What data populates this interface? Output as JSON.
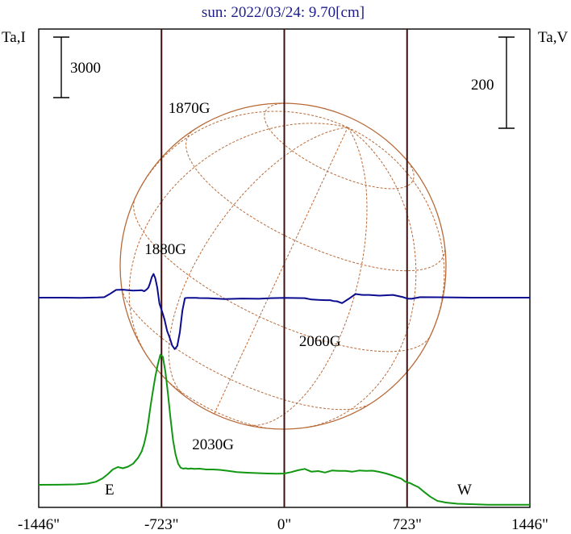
{
  "title": "sun: 2022/03/24: 9.70[cm]",
  "left_label": "Ta,I",
  "right_label": "Ta,V",
  "left_scale_label": "3000",
  "right_scale_label": "200",
  "east_label": "E",
  "west_label": "W",
  "colors": {
    "title": "#1c1c8c",
    "stokes_i": "#129712",
    "stokes_v": "#0c0c90",
    "grid_globe": "#b86a38",
    "frame": "#000000",
    "limb_lines": "#3a1010"
  },
  "chart_data": {
    "type": "line",
    "title": "sun: 2022/03/24: 9.70[cm]",
    "xlabel": "",
    "ylabel_left": "Ta,I",
    "ylabel_right": "Ta,V",
    "x_ticks": [
      -1446,
      -723,
      0,
      723,
      1446
    ],
    "x_tick_labels": [
      "-1446\"",
      "-723\"",
      "0\"",
      "723\"",
      "1446\""
    ],
    "xlim": [
      -1446,
      1446
    ],
    "limb_positions": [
      -723,
      0,
      723
    ],
    "scale_bars": [
      {
        "axis": "left",
        "value": 3000
      },
      {
        "axis": "right",
        "value": 200
      }
    ],
    "annotations": [
      {
        "text": "1870G",
        "x": -560,
        "series": "V"
      },
      {
        "text": "1880G",
        "x": -700,
        "series": "V"
      },
      {
        "text": "2030G",
        "x": -420,
        "series": "V"
      },
      {
        "text": "2060G",
        "x": 210,
        "series": "V"
      }
    ],
    "series": [
      {
        "name": "I",
        "x": [
          -1446,
          -1330,
          -1230,
          -1160,
          -1110,
          -1070,
          -1040,
          -1010,
          -980,
          -950,
          -920,
          -890,
          -860,
          -840,
          -825,
          -810,
          -800,
          -790,
          -780,
          -770,
          -760,
          -745,
          -730,
          -715,
          -700,
          -685,
          -670,
          -655,
          -640,
          -625,
          -610,
          -595,
          -580,
          -565,
          -550,
          -530,
          -500,
          -460,
          -420,
          -380,
          -330,
          -280,
          -220,
          -160,
          -100,
          -40,
          0,
          40,
          80,
          120,
          160,
          200,
          240,
          280,
          320,
          360,
          400,
          440,
          480,
          520,
          560,
          600,
          630,
          660,
          690,
          710,
          723,
          740,
          760,
          790,
          820,
          860,
          900,
          950,
          1020,
          1100,
          1200,
          1300,
          1446
        ],
        "values": [
          0,
          5,
          20,
          60,
          150,
          320,
          520,
          760,
          880,
          820,
          900,
          1050,
          1350,
          1650,
          2050,
          2600,
          3150,
          3750,
          4300,
          4850,
          5350,
          5950,
          6450,
          6350,
          5600,
          4500,
          3300,
          2200,
          1500,
          1050,
          850,
          800,
          820,
          790,
          810,
          790,
          800,
          760,
          760,
          740,
          690,
          630,
          600,
          580,
          560,
          550,
          560,
          630,
          720,
          790,
          650,
          680,
          610,
          710,
          690,
          690,
          650,
          710,
          690,
          700,
          640,
          560,
          480,
          390,
          300,
          170,
          110,
          90,
          0,
          -120,
          -330,
          -590,
          -790,
          -880,
          -940,
          -960,
          -990,
          -990,
          -990
        ]
      },
      {
        "name": "V",
        "x": [
          -1446,
          -1300,
          -1200,
          -1100,
          -1060,
          -1030,
          -990,
          -950,
          -920,
          -890,
          -860,
          -840,
          -825,
          -810,
          -800,
          -790,
          -780,
          -770,
          -760,
          -748,
          -735,
          -720,
          -705,
          -690,
          -675,
          -660,
          -645,
          -630,
          -615,
          -600,
          -585,
          -570,
          -555,
          -540,
          -520,
          -500,
          -450,
          -350,
          -250,
          -150,
          -80,
          0,
          80,
          120,
          160,
          200,
          240,
          270,
          290,
          310,
          340,
          380,
          420,
          460,
          500,
          560,
          640,
          700,
          723,
          750,
          800,
          900,
          1000,
          1100,
          1200,
          1300,
          1446
        ],
        "values": [
          0,
          0,
          -3,
          3,
          10,
          75,
          170,
          175,
          165,
          155,
          160,
          165,
          140,
          180,
          220,
          320,
          450,
          520,
          430,
          220,
          -130,
          -300,
          -480,
          -730,
          -880,
          -1050,
          -1130,
          -1060,
          -760,
          -280,
          -10,
          -5,
          -5,
          -5,
          -5,
          -8,
          -10,
          -30,
          -20,
          -25,
          -10,
          -6,
          -8,
          -10,
          -40,
          -50,
          -55,
          -55,
          -75,
          -80,
          -120,
          -25,
          80,
          60,
          60,
          45,
          60,
          10,
          -20,
          -25,
          10,
          8,
          3,
          0,
          0,
          0,
          0
        ]
      }
    ]
  }
}
